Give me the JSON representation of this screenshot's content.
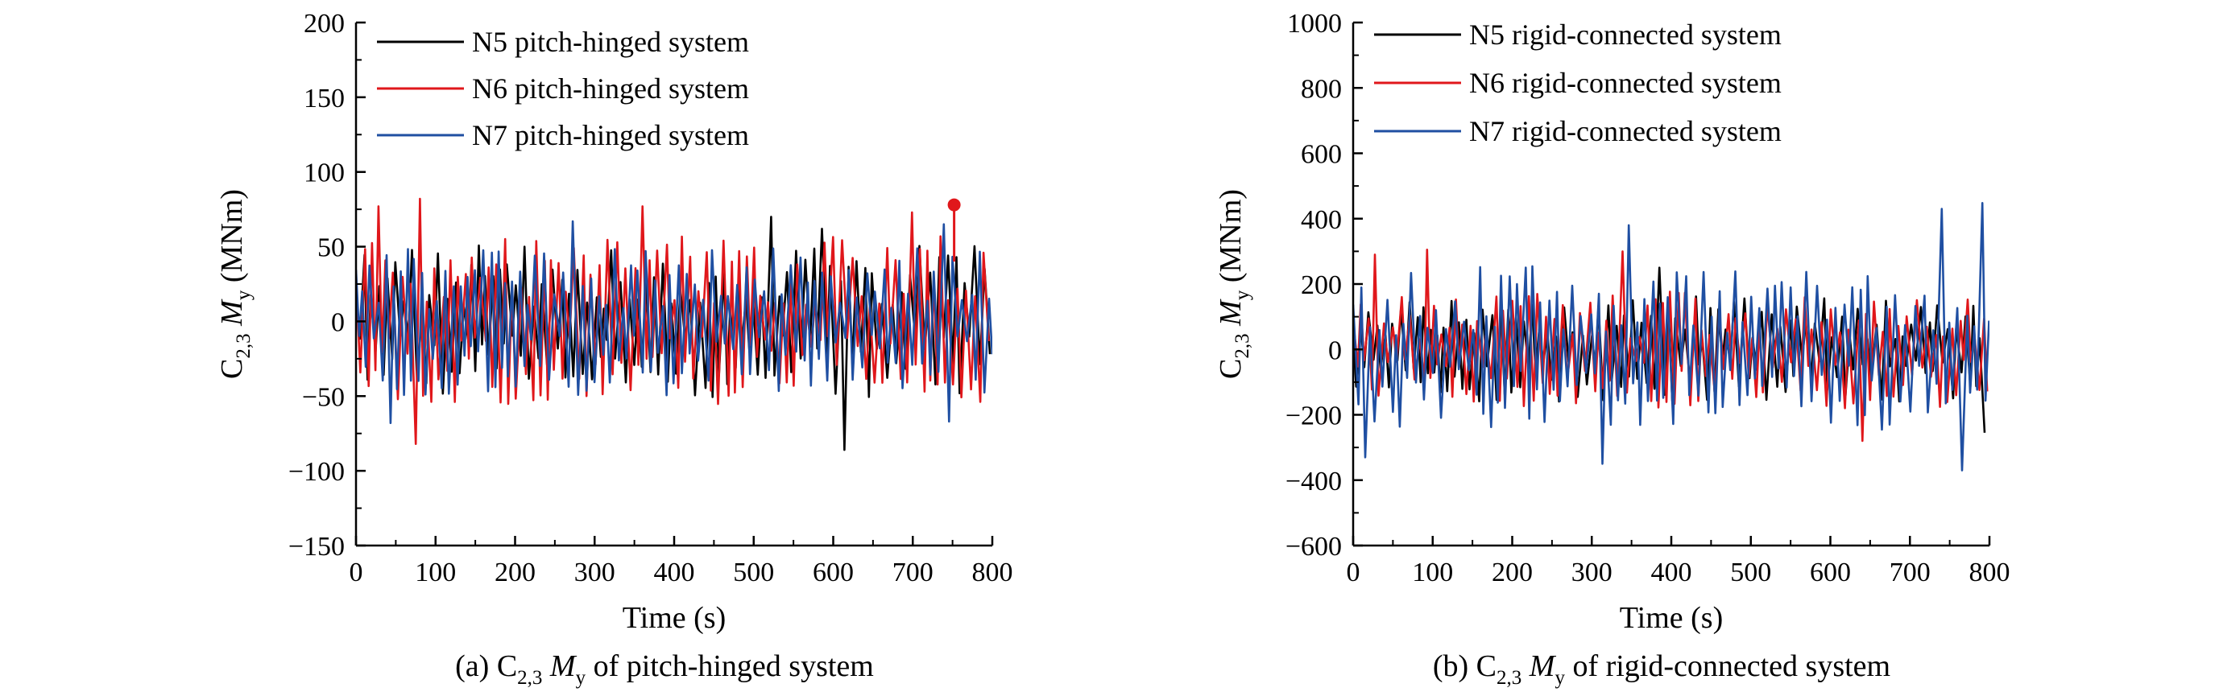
{
  "chart_data": [
    {
      "type": "line",
      "id": "a",
      "caption": "(a) C2,3 My of pitch-hinged system",
      "caption_parts": {
        "prefix": "(a) C",
        "sub": "2,3",
        "mid": " M",
        "sub2": "y",
        "suffix": " of pitch-hinged system"
      },
      "xlabel": "Time (s)",
      "ylabel_parts": {
        "pre": "C",
        "sub": "2,3",
        "mid": " M",
        "sub2": "y",
        "unit": " (MNm)"
      },
      "xlim": [
        0,
        800
      ],
      "ylim": [
        -150,
        200
      ],
      "xticks": [
        0,
        100,
        200,
        300,
        400,
        500,
        600,
        700,
        800
      ],
      "yticks": [
        -150,
        -100,
        -50,
        0,
        50,
        100,
        150,
        200
      ],
      "ytick_labels": [
        "−150",
        "−100",
        "−50",
        "0",
        "50",
        "100",
        "150",
        "200"
      ],
      "legend": [
        {
          "label": "N5 pitch-hinged system",
          "color": "#000000"
        },
        {
          "label": "N6 pitch-hinged system",
          "color": "#e0171b"
        },
        {
          "label": "N7 pitch-hinged system",
          "color": "#1f4fa2"
        }
      ],
      "series": [
        {
          "name": "N5 pitch-hinged system",
          "color": "#000000",
          "amp": 34,
          "seed": 11,
          "spikes": [
            [
              617,
              -86
            ],
            [
              590,
              62
            ],
            [
              520,
              70
            ]
          ]
        },
        {
          "name": "N6 pitch-hinged system",
          "color": "#e0171b",
          "amp": 38,
          "seed": 23,
          "spikes": [
            [
              78,
              82
            ],
            [
              78,
              -82
            ],
            [
              28,
              77
            ],
            [
              363,
              77
            ],
            [
              694,
              73
            ]
          ]
        },
        {
          "name": "N7 pitch-hinged system",
          "color": "#1f4fa2",
          "amp": 33,
          "seed": 37,
          "spikes": [
            [
              45,
              -68
            ],
            [
              270,
              67
            ],
            [
              745,
              -67
            ],
            [
              735,
              65
            ]
          ]
        }
      ],
      "marker": {
        "x": 752,
        "y": 78,
        "color": "#e0171b"
      }
    },
    {
      "type": "line",
      "id": "b",
      "caption": "(b) C2,3 My of rigid-connected system",
      "caption_parts": {
        "prefix": "(b) C",
        "sub": "2,3",
        "mid": " M",
        "sub2": "y",
        "suffix": " of rigid-connected system"
      },
      "xlabel": "Time (s)",
      "ylabel_parts": {
        "pre": "C",
        "sub": "2,3",
        "mid": " M",
        "sub2": "y",
        "unit": " (MNm)"
      },
      "xlim": [
        0,
        800
      ],
      "ylim": [
        -600,
        1000
      ],
      "xticks": [
        0,
        100,
        200,
        300,
        400,
        500,
        600,
        700,
        800
      ],
      "yticks": [
        -600,
        -400,
        -200,
        0,
        200,
        400,
        600,
        800,
        1000
      ],
      "ytick_labels": [
        "−600",
        "−400",
        "−200",
        "0",
        "200",
        "400",
        "600",
        "800",
        "1000"
      ],
      "legend": [
        {
          "label": "N5 rigid-connected system",
          "color": "#000000"
        },
        {
          "label": "N6 rigid-connected system",
          "color": "#e0171b"
        },
        {
          "label": "N7 rigid-connected system",
          "color": "#1f4fa2"
        }
      ],
      "series": [
        {
          "name": "N5 rigid-connected system",
          "color": "#000000",
          "amp": 110,
          "seed": 53,
          "spikes": [
            [
              792,
              -255
            ],
            [
              380,
              250
            ]
          ]
        },
        {
          "name": "N6 rigid-connected system",
          "color": "#e0171b",
          "amp": 120,
          "seed": 67,
          "spikes": [
            [
              25,
              290
            ],
            [
              92,
              305
            ],
            [
              340,
              300
            ],
            [
              640,
              -280
            ]
          ]
        },
        {
          "name": "N7 rigid-connected system",
          "color": "#1f4fa2",
          "amp": 170,
          "seed": 79,
          "spikes": [
            [
              13,
              -330
            ],
            [
              312,
              -350
            ],
            [
              762,
              -370
            ],
            [
              790,
              448
            ],
            [
              740,
              430
            ],
            [
              350,
              380
            ]
          ]
        }
      ]
    }
  ]
}
